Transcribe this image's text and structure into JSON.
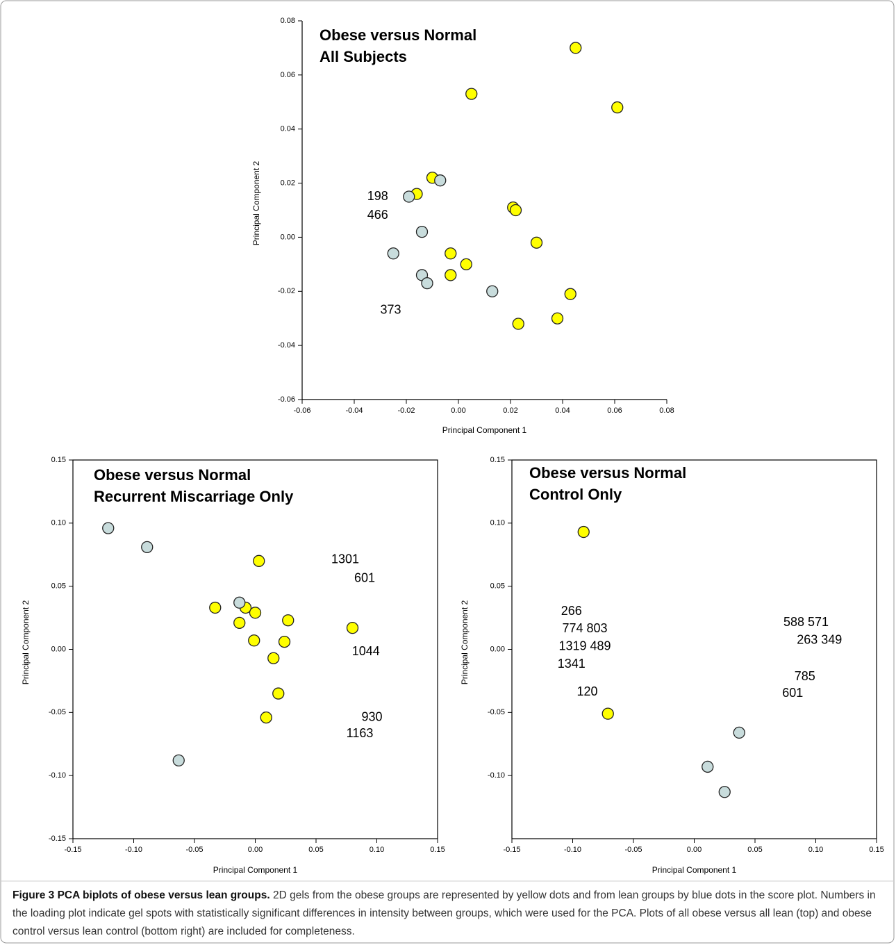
{
  "chart_data": [
    {
      "type": "scatter",
      "title": "Obese versus Normal",
      "subtitle": "All Subjects",
      "xlabel": "Principal Component 1",
      "ylabel": "Principal Component 2",
      "xlim": [
        -0.06,
        0.08
      ],
      "ylim": [
        -0.06,
        0.08
      ],
      "xticks": [
        -0.06,
        -0.04,
        -0.02,
        {
          "value": 0,
          "label": "0.00"
        },
        0.02,
        0.04,
        0.06,
        0.08
      ],
      "yticks": [
        -0.06,
        -0.04,
        -0.02,
        {
          "value": 0,
          "label": "0.00"
        },
        0.02,
        0.04,
        0.06,
        0.08
      ],
      "series": [
        {
          "color": "#ffff00",
          "x": [
            0.045,
            0.005,
            0.061,
            -0.01,
            -0.016,
            0.021,
            0.022,
            0.03,
            -0.003,
            0.003,
            -0.003,
            0.043,
            0.023,
            0.038
          ],
          "y": [
            0.07,
            0.053,
            0.048,
            0.022,
            0.016,
            0.011,
            0.01,
            -0.002,
            -0.006,
            -0.01,
            -0.014,
            -0.021,
            -0.032,
            -0.03
          ]
        },
        {
          "color": "#c8dcdc",
          "x": [
            -0.007,
            -0.019,
            -0.014,
            -0.025,
            -0.014,
            -0.012,
            0.013
          ],
          "y": [
            0.021,
            0.015,
            0.002,
            -0.006,
            -0.014,
            -0.017,
            -0.02
          ]
        }
      ],
      "annotations": [
        {
          "text": "198",
          "x": -0.031,
          "y": 0.015
        },
        {
          "text": "466",
          "x": -0.031,
          "y": 0.008
        },
        {
          "text": "373",
          "x": -0.026,
          "y": -0.027
        }
      ]
    },
    {
      "type": "scatter",
      "title": "Obese versus Normal",
      "subtitle": "Recurrent Miscarriage Only",
      "xlabel": "Principal Component 1",
      "ylabel": "Principal Component 2",
      "xlim": [
        -0.15,
        0.15
      ],
      "ylim": [
        -0.15,
        0.15
      ],
      "xticks": [
        -0.15,
        {
          "value": -0.1,
          "label": "-0.10"
        },
        -0.05,
        {
          "value": 0,
          "label": "0.00"
        },
        0.05,
        {
          "value": 0.1,
          "label": "0.10"
        },
        0.15
      ],
      "yticks": [
        -0.15,
        {
          "value": -0.1,
          "label": "-0.10"
        },
        -0.05,
        {
          "value": 0,
          "label": "0.00"
        },
        0.05,
        {
          "value": 0.1,
          "label": "0.10"
        },
        0.15
      ],
      "series": [
        {
          "color": "#ffff00",
          "x": [
            0.003,
            -0.033,
            -0.008,
            0.0,
            0.027,
            -0.013,
            0.08,
            -0.001,
            0.024,
            0.015,
            0.019,
            0.009
          ],
          "y": [
            0.07,
            0.033,
            0.033,
            0.029,
            0.023,
            0.021,
            0.017,
            0.007,
            0.006,
            -0.007,
            -0.035,
            -0.054
          ]
        },
        {
          "color": "#c8dcdc",
          "x": [
            -0.121,
            -0.089,
            -0.013,
            -0.063
          ],
          "y": [
            0.096,
            0.081,
            0.037,
            -0.088
          ]
        }
      ],
      "annotations": [
        {
          "text": "1301",
          "x": 0.074,
          "y": 0.071
        },
        {
          "text": "601",
          "x": 0.09,
          "y": 0.056
        },
        {
          "text": "1044",
          "x": 0.091,
          "y": -0.002
        },
        {
          "text": "930",
          "x": 0.096,
          "y": -0.054
        },
        {
          "text": "1163",
          "x": 0.086,
          "y": -0.067
        }
      ]
    },
    {
      "type": "scatter",
      "title": "Obese versus Normal",
      "subtitle": "Control Only",
      "xlabel": "Principal Component 1",
      "ylabel": "Principal Component 2",
      "xlim": [
        -0.15,
        0.15
      ],
      "ylim": [
        -0.15,
        0.15
      ],
      "xticks": [
        -0.15,
        {
          "value": -0.1,
          "label": "-0.10"
        },
        -0.05,
        {
          "value": 0,
          "label": "0.00"
        },
        0.05,
        {
          "value": 0.1,
          "label": "0.10"
        },
        0.15
      ],
      "yticks": [
        {
          "value": -0.1,
          "label": "-0.10"
        },
        -0.05,
        {
          "value": 0,
          "label": "0.00"
        },
        0.05,
        {
          "value": 0.1,
          "label": "0.10"
        },
        0.15
      ],
      "series": [
        {
          "color": "#ffff00",
          "x": [
            -0.091,
            -0.071
          ],
          "y": [
            0.093,
            -0.051
          ]
        },
        {
          "color": "#c8dcdc",
          "x": [
            0.037,
            0.011,
            0.025
          ],
          "y": [
            -0.066,
            -0.093,
            -0.113
          ]
        }
      ],
      "annotations": [
        {
          "text": "266",
          "x": -0.101,
          "y": 0.03
        },
        {
          "text": "774 803",
          "x": -0.09,
          "y": 0.016
        },
        {
          "text": "1319 489",
          "x": -0.09,
          "y": 0.002
        },
        {
          "text": "1341",
          "x": -0.101,
          "y": -0.012
        },
        {
          "text": "120",
          "x": -0.088,
          "y": -0.034
        },
        {
          "text": "588 571",
          "x": 0.092,
          "y": 0.021
        },
        {
          "text": "263 349",
          "x": 0.103,
          "y": 0.007
        },
        {
          "text": "785",
          "x": 0.091,
          "y": -0.022
        },
        {
          "text": "601",
          "x": 0.081,
          "y": -0.035
        }
      ]
    }
  ],
  "caption": {
    "label": "Figure 3 PCA biplots of obese versus lean groups.",
    "text": "2D gels from the obese groups are represented by yellow dots and from lean groups by blue dots in the score plot. Numbers in the loading plot indicate gel spots with statistically significant differences in intensity between groups, which were used for the PCA. Plots of all obese versus all lean (top) and obese control versus lean control (bottom right) are included for completeness."
  }
}
